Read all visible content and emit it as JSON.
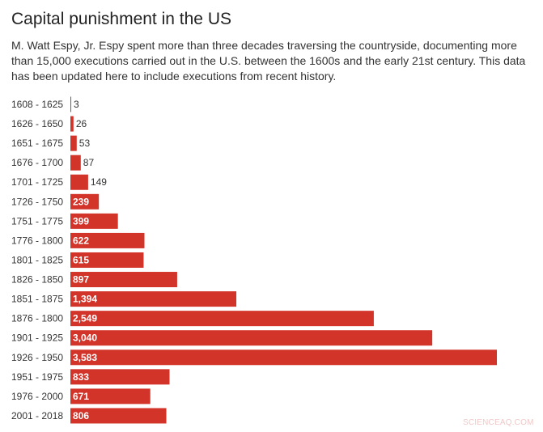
{
  "chart_data": {
    "type": "bar",
    "orientation": "horizontal",
    "title": "Capital punishment in the US",
    "subtitle": "M. Watt Espy, Jr. Espy spent more than three decades traversing the countryside, documenting more than 15,000 executions carried out in the U.S. between the 1600s and the early 21st century. This data has been updated here to include executions from recent history.",
    "categories": [
      "1608 - 1625",
      "1626 - 1650",
      "1651 - 1675",
      "1676 - 1700",
      "1701 - 1725",
      "1726 - 1750",
      "1751 - 1775",
      "1776 - 1800",
      "1801 - 1825",
      "1826 - 1850",
      "1851 - 1875",
      "1876 - 1800",
      "1901 - 1925",
      "1926 - 1950",
      "1951 - 1975",
      "1976 - 2000",
      "2001 - 2018"
    ],
    "values": [
      3,
      26,
      53,
      87,
      149,
      239,
      399,
      622,
      615,
      897,
      1394,
      2549,
      3040,
      3583,
      833,
      671,
      806
    ],
    "value_labels": [
      "3",
      "26",
      "53",
      "87",
      "149",
      "239",
      "399",
      "622",
      "615",
      "897",
      "1,394",
      "2,549",
      "3,040",
      "3,583",
      "833",
      "671",
      "806"
    ],
    "xlim": [
      0,
      3583
    ],
    "grid": false,
    "bar_color": "#d2342a"
  },
  "watermark": "SCIENCEAQ.COM"
}
